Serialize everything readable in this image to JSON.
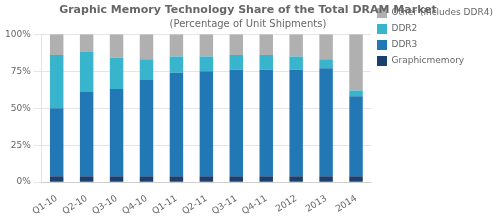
{
  "chart_data": {
    "type": "bar",
    "stacked": true,
    "title": "Graphic Memory Technology Share of the Total DRAM Market",
    "subtitle": "(Percentage of Unit Shipments)",
    "categories": [
      "Q1-10",
      "Q2-10",
      "Q3-10",
      "Q4-10",
      "Q1-11",
      "Q2-11",
      "Q3-11",
      "Q4-11",
      "2012",
      "2013",
      "2014"
    ],
    "series": [
      {
        "name": "Graphicmemory",
        "color": "#1b3f6e",
        "values": [
          4,
          4,
          4,
          4,
          4,
          4,
          4,
          4,
          4,
          4,
          4
        ]
      },
      {
        "name": "DDR3",
        "color": "#2178b4",
        "values": [
          46,
          57,
          59,
          65,
          70,
          71,
          72,
          72,
          72,
          73,
          54
        ]
      },
      {
        "name": "DDR2",
        "color": "#38b4cc",
        "values": [
          36,
          27,
          21,
          14,
          11,
          10,
          10,
          10,
          9,
          6,
          4
        ]
      },
      {
        "name": "Other (includes DDR4)",
        "color": "#b0b0b0",
        "values": [
          14,
          12,
          16,
          17,
          15,
          15,
          14,
          14,
          15,
          17,
          38
        ]
      }
    ],
    "ylim": [
      0,
      100
    ],
    "yticks": [
      {
        "value": 0,
        "label": "0%"
      },
      {
        "value": 25,
        "label": "25%"
      },
      {
        "value": 50,
        "label": "50%"
      },
      {
        "value": 75,
        "label": "75%"
      },
      {
        "value": 100,
        "label": "100%"
      }
    ],
    "grid": true,
    "legend": "right"
  }
}
